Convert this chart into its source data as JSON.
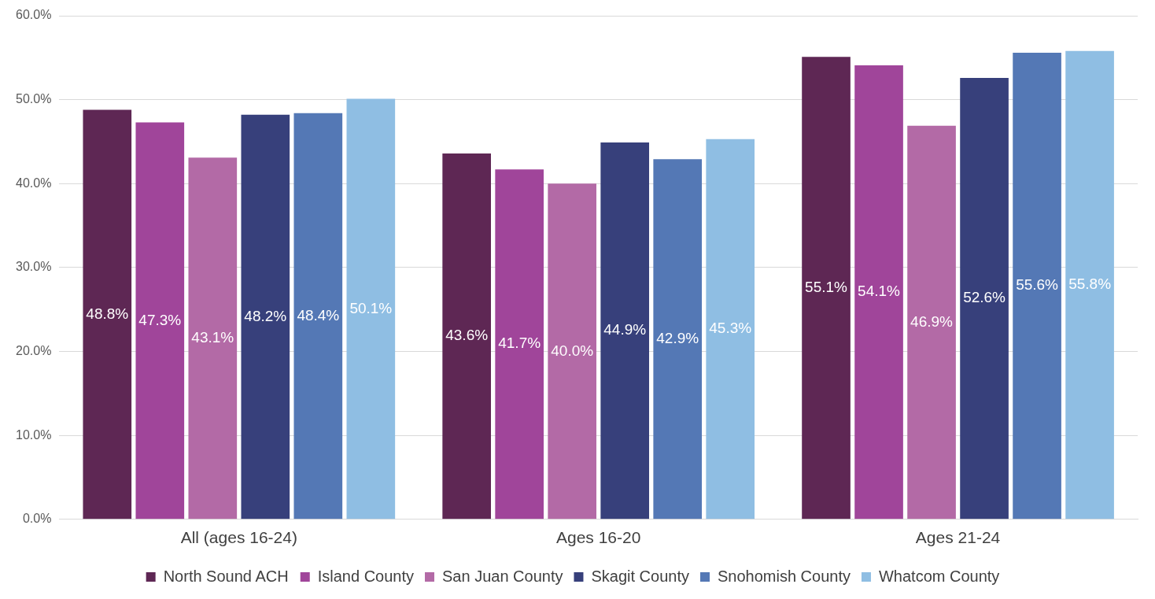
{
  "chart_data": {
    "type": "bar",
    "categories": [
      "All (ages 16-24)",
      "Ages 16-20",
      "Ages 21-24"
    ],
    "series": [
      {
        "name": "North Sound ACH",
        "color": "#5e2754",
        "values": [
          48.8,
          43.6,
          55.1
        ],
        "value_labels": [
          "48.8%",
          "43.6%",
          "55.1%"
        ]
      },
      {
        "name": "Island County",
        "color": "#a0459a",
        "values": [
          47.3,
          41.7,
          54.1
        ],
        "value_labels": [
          "47.3%",
          "41.7%",
          "54.1%"
        ]
      },
      {
        "name": "San Juan County",
        "color": "#b36aa6",
        "values": [
          43.1,
          40.0,
          46.9
        ],
        "value_labels": [
          "43.1%",
          "40.0%",
          "46.9%"
        ]
      },
      {
        "name": "Skagit County",
        "color": "#37407b",
        "values": [
          48.2,
          44.9,
          52.6
        ],
        "value_labels": [
          "48.2%",
          "44.9%",
          "52.6%"
        ]
      },
      {
        "name": "Snohomish County",
        "color": "#5478b5",
        "values": [
          48.4,
          42.9,
          55.6
        ],
        "value_labels": [
          "48.4%",
          "42.9%",
          "55.6%"
        ]
      },
      {
        "name": "Whatcom County",
        "color": "#8fbee3",
        "values": [
          50.1,
          45.3,
          55.8
        ],
        "value_labels": [
          "50.1%",
          "45.3%",
          "55.8%"
        ]
      }
    ],
    "ylim": [
      0,
      60
    ],
    "yticks": [
      {
        "value": 0,
        "label": "0.0%"
      },
      {
        "value": 10,
        "label": "10.0%"
      },
      {
        "value": 20,
        "label": "20.0%"
      },
      {
        "value": 30,
        "label": "30.0%"
      },
      {
        "value": 40,
        "label": "40.0%"
      },
      {
        "value": 50,
        "label": "50.0%"
      },
      {
        "value": 60,
        "label": "60.0%"
      }
    ],
    "grid": "y",
    "legend": "bottom"
  }
}
